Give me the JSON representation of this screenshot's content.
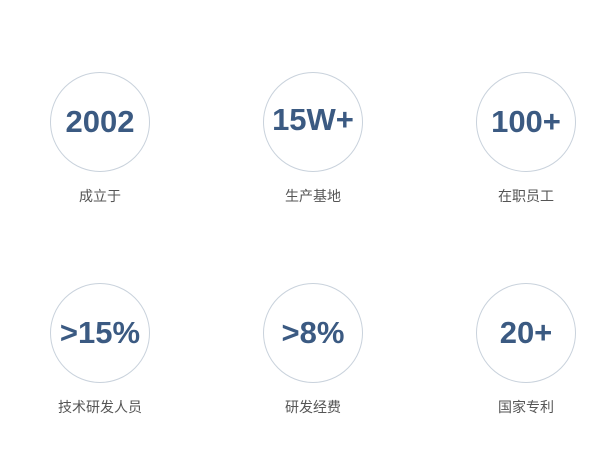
{
  "stats": [
    {
      "value": "2002",
      "label": "成立于"
    },
    {
      "value": "15W+",
      "label": "生产基地"
    },
    {
      "value": "100+",
      "label": "在职员工"
    },
    {
      "value": ">15%",
      "label": "技术研发人员"
    },
    {
      "value": ">8%",
      "label": "研发经费"
    },
    {
      "value": "20+",
      "label": "国家专利"
    }
  ]
}
